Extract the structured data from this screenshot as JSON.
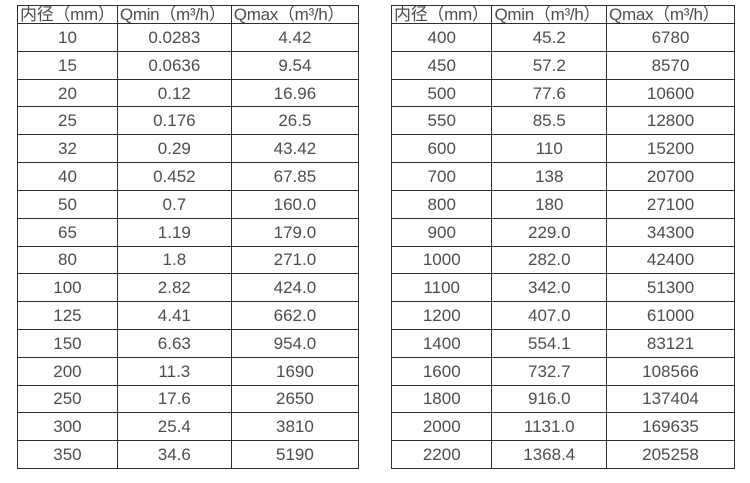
{
  "colors": {
    "text": "#4d4d4d",
    "border": "#2e2e2e",
    "background": "#ffffff"
  },
  "tables": [
    {
      "name": "flow-table-small-diameters",
      "headers": [
        "内径（mm）",
        "Qmin（m³/h）",
        "Qmax（m³/h）"
      ],
      "rows": [
        [
          "10",
          "0.0283",
          "4.42"
        ],
        [
          "15",
          "0.0636",
          "9.54"
        ],
        [
          "20",
          "0.12",
          "16.96"
        ],
        [
          "25",
          "0.176",
          "26.5"
        ],
        [
          "32",
          "0.29",
          "43.42"
        ],
        [
          "40",
          "0.452",
          "67.85"
        ],
        [
          "50",
          "0.7",
          "160.0"
        ],
        [
          "65",
          "1.19",
          "179.0"
        ],
        [
          "80",
          "1.8",
          "271.0"
        ],
        [
          "100",
          "2.82",
          "424.0"
        ],
        [
          "125",
          "4.41",
          "662.0"
        ],
        [
          "150",
          "6.63",
          "954.0"
        ],
        [
          "200",
          "11.3",
          "1690"
        ],
        [
          "250",
          "17.6",
          "2650"
        ],
        [
          "300",
          "25.4",
          "3810"
        ],
        [
          "350",
          "34.6",
          "5190"
        ]
      ]
    },
    {
      "name": "flow-table-large-diameters",
      "headers": [
        "内径（mm）",
        "Qmin（m³/h）",
        "Qmax（m³/h）"
      ],
      "rows": [
        [
          "400",
          "45.2",
          "6780"
        ],
        [
          "450",
          "57.2",
          "8570"
        ],
        [
          "500",
          "77.6",
          "10600"
        ],
        [
          "550",
          "85.5",
          "12800"
        ],
        [
          "600",
          "110",
          "15200"
        ],
        [
          "700",
          "138",
          "20700"
        ],
        [
          "800",
          "180",
          "27100"
        ],
        [
          "900",
          "229.0",
          "34300"
        ],
        [
          "1000",
          "282.0",
          "42400"
        ],
        [
          "1100",
          "342.0",
          "51300"
        ],
        [
          "1200",
          "407.0",
          "61000"
        ],
        [
          "1400",
          "554.1",
          "83121"
        ],
        [
          "1600",
          "732.7",
          "108566"
        ],
        [
          "1800",
          "916.0",
          "137404"
        ],
        [
          "2000",
          "1131.0",
          "169635"
        ],
        [
          "2200",
          "1368.4",
          "205258"
        ]
      ]
    }
  ]
}
